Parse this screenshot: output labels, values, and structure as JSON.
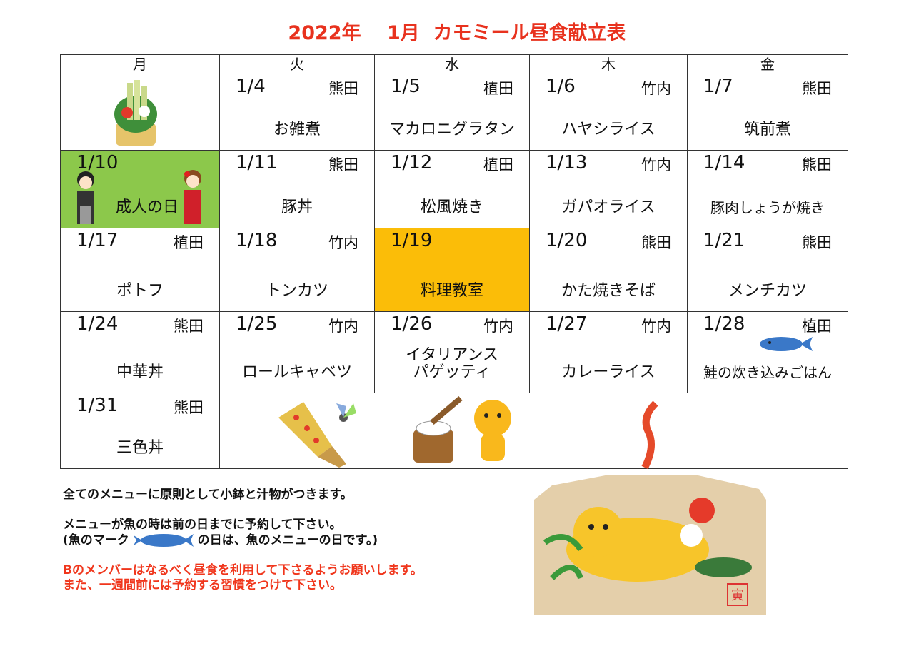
{
  "title": "2022年　 1月  カモミール昼食献立表",
  "weekdays": [
    "月",
    "火",
    "水",
    "木",
    "金"
  ],
  "weeks": [
    [
      {
        "date": "",
        "who": "",
        "menu": ""
      },
      {
        "date": "1/4",
        "who": "熊田",
        "menu": "お雑煮"
      },
      {
        "date": "1/5",
        "who": "植田",
        "menu": "マカロニグラタン"
      },
      {
        "date": "1/6",
        "who": "竹内",
        "menu": "ハヤシライス"
      },
      {
        "date": "1/7",
        "who": "熊田",
        "menu": "筑前煮"
      }
    ],
    [
      {
        "date": "1/10",
        "who": "",
        "menu": "成人の日"
      },
      {
        "date": "1/11",
        "who": "熊田",
        "menu": "豚丼"
      },
      {
        "date": "1/12",
        "who": "植田",
        "menu": "松風焼き"
      },
      {
        "date": "1/13",
        "who": "竹内",
        "menu": "ガパオライス"
      },
      {
        "date": "1/14",
        "who": "熊田",
        "menu": "豚肉しょうが焼き"
      }
    ],
    [
      {
        "date": "1/17",
        "who": "植田",
        "menu": "ポトフ"
      },
      {
        "date": "1/18",
        "who": "竹内",
        "menu": "トンカツ"
      },
      {
        "date": "1/19",
        "who": "",
        "menu": "料理教室"
      },
      {
        "date": "1/20",
        "who": "熊田",
        "menu": "かた焼きそば"
      },
      {
        "date": "1/21",
        "who": "熊田",
        "menu": "メンチカツ"
      }
    ],
    [
      {
        "date": "1/24",
        "who": "熊田",
        "menu": "中華丼"
      },
      {
        "date": "1/25",
        "who": "竹内",
        "menu": "ロールキャベツ"
      },
      {
        "date": "1/26",
        "who": "竹内",
        "menu": "イタリアンス\nパゲッティ"
      },
      {
        "date": "1/27",
        "who": "竹内",
        "menu": "カレーライス"
      },
      {
        "date": "1/28",
        "who": "植田",
        "menu": "鮭の炊き込みごはん"
      }
    ],
    [
      {
        "date": "1/31",
        "who": "熊田",
        "menu": "三色丼"
      }
    ]
  ],
  "notes": {
    "line1": "全てのメニューに原則として小鉢と汁物がつきます。",
    "line2": "メニューが魚の時は前の日までに予約して下さい。",
    "line3a": "(魚のマーク",
    "line3b": "の日は、魚のメニューの日です。)",
    "red1": "Bのメンバーはなるべく昼食を利用して下さるようお願いします。",
    "red2": "また、一週間前には予約する習慣をつけて下さい。"
  },
  "ema_stamp": "寅",
  "colors": {
    "title": "#e8321e",
    "holiday": "#8cc84b",
    "event": "#fbbd08",
    "fish": "#3a78c8"
  }
}
